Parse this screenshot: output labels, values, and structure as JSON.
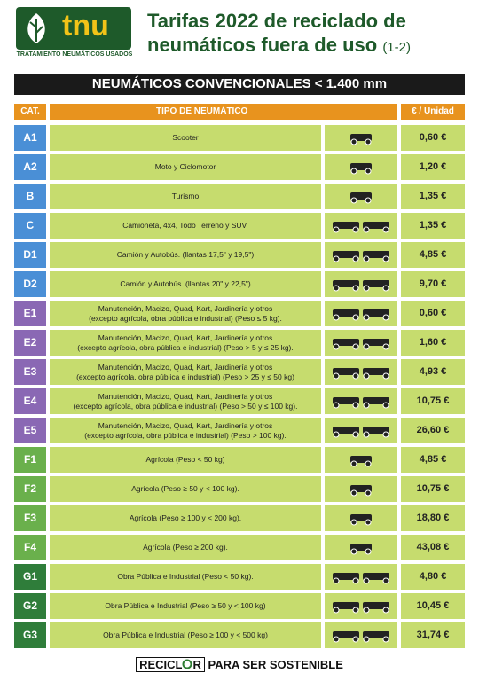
{
  "header": {
    "logo": "tnu",
    "logo_subtitle": "TRATAMIENTO NEUMÁTICOS USADOS",
    "title_line1": "Tarifas 2022 de reciclado de",
    "title_line2": "neumáticos fuera de uso",
    "title_part": "(1-2)"
  },
  "banner": "NEUMÁTICOS CONVENCIONALES < 1.400 mm",
  "table": {
    "columns": [
      "CAT.",
      "TIPO DE NEUMÁTICO",
      "€ / Unidad"
    ],
    "rows": [
      {
        "cat": "A1",
        "tipo": [
          "Scooter"
        ],
        "precio": "0,60 €"
      },
      {
        "cat": "A2",
        "tipo": [
          "Moto y Ciclomotor"
        ],
        "precio": "1,20 €"
      },
      {
        "cat": "B",
        "tipo": [
          "Turismo"
        ],
        "precio": "1,35 €"
      },
      {
        "cat": "C",
        "tipo": [
          "Camioneta, 4x4, Todo Terreno y SUV."
        ],
        "precio": "1,35 €"
      },
      {
        "cat": "D1",
        "tipo": [
          "Camión y Autobús. (llantas 17,5\" y 19,5\")"
        ],
        "precio": "4,85 €"
      },
      {
        "cat": "D2",
        "tipo": [
          "Camión y Autobús. (llantas 20\" y 22,5\")"
        ],
        "precio": "9,70 €"
      },
      {
        "cat": "E1",
        "tipo": [
          "Manutención, Macizo, Quad, Kart, Jardinería y otros",
          "(excepto agrícola, obra pública e industrial)  (Peso ≤ 5 kg)."
        ],
        "precio": "0,60 €"
      },
      {
        "cat": "E2",
        "tipo": [
          "Manutención, Macizo, Quad, Kart, Jardinería y otros",
          "(excepto agrícola, obra pública e industrial) (Peso > 5 y ≤ 25 kg)."
        ],
        "precio": "1,60 €"
      },
      {
        "cat": "E3",
        "tipo": [
          "Manutención, Macizo, Quad, Kart, Jardinería y otros",
          "(excepto agrícola, obra pública e industrial) (Peso > 25 y ≤ 50 kg)"
        ],
        "precio": "4,93 €"
      },
      {
        "cat": "E4",
        "tipo": [
          "Manutención, Macizo, Quad, Kart, Jardinería y otros",
          "(excepto agrícola, obra pública e industrial) (Peso > 50 y ≤ 100 kg)."
        ],
        "precio": "10,75 €"
      },
      {
        "cat": "E5",
        "tipo": [
          "Manutención, Macizo, Quad, Kart, Jardinería y otros",
          "(excepto agrícola, obra pública e industrial) (Peso > 100 kg)."
        ],
        "precio": "26,60 €"
      },
      {
        "cat": "F1",
        "tipo": [
          "Agrícola (Peso < 50 kg)"
        ],
        "precio": "4,85 €"
      },
      {
        "cat": "F2",
        "tipo": [
          "Agrícola (Peso ≥ 50 y < 100 kg)."
        ],
        "precio": "10,75 €"
      },
      {
        "cat": "F3",
        "tipo": [
          "Agrícola (Peso ≥ 100 y < 200 kg)."
        ],
        "precio": "18,80 €"
      },
      {
        "cat": "F4",
        "tipo": [
          "Agrícola (Peso ≥ 200 kg)."
        ],
        "precio": "43,08 €"
      },
      {
        "cat": "G1",
        "tipo": [
          "Obra Pública e Industrial (Peso < 50 kg)."
        ],
        "precio": "4,80 €"
      },
      {
        "cat": "G2",
        "tipo": [
          "Obra Pública e Industrial (Peso ≥ 50 y < 100 kg)"
        ],
        "precio": "10,45 €"
      },
      {
        "cat": "G3",
        "tipo": [
          "Obra Pública e Industrial (Peso ≥ 100 y < 500 kg)"
        ],
        "precio": "31,74 €"
      }
    ]
  },
  "footer": {
    "brand_start": "RECICL",
    "brand_end": "R",
    "slogan": "PARA SER SOSTENIBLE"
  }
}
